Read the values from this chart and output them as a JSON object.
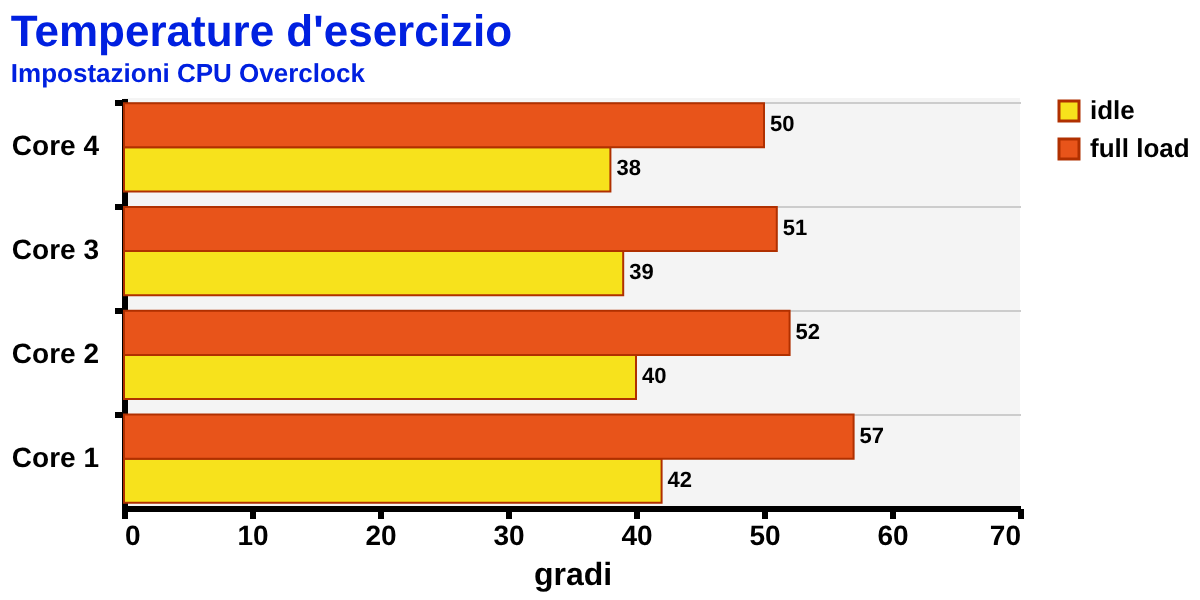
{
  "chart_data": {
    "type": "bar",
    "orientation": "horizontal",
    "title": "Temperature d'esercizio",
    "subtitle": "Impostazioni CPU Overclock",
    "xlabel": "gradi",
    "categories": [
      "Core 4",
      "Core 3",
      "Core 2",
      "Core 1"
    ],
    "series": [
      {
        "name": "idle",
        "color": "#f7e21c",
        "values": [
          38,
          39,
          40,
          42
        ]
      },
      {
        "name": "full load",
        "color": "#e8541a",
        "values": [
          50,
          51,
          52,
          57
        ]
      }
    ],
    "xlim": [
      0,
      70
    ],
    "xticks": [
      0,
      10,
      20,
      30,
      40,
      50,
      60,
      70
    ],
    "grid": false,
    "legend": "right",
    "data_labels": true
  }
}
